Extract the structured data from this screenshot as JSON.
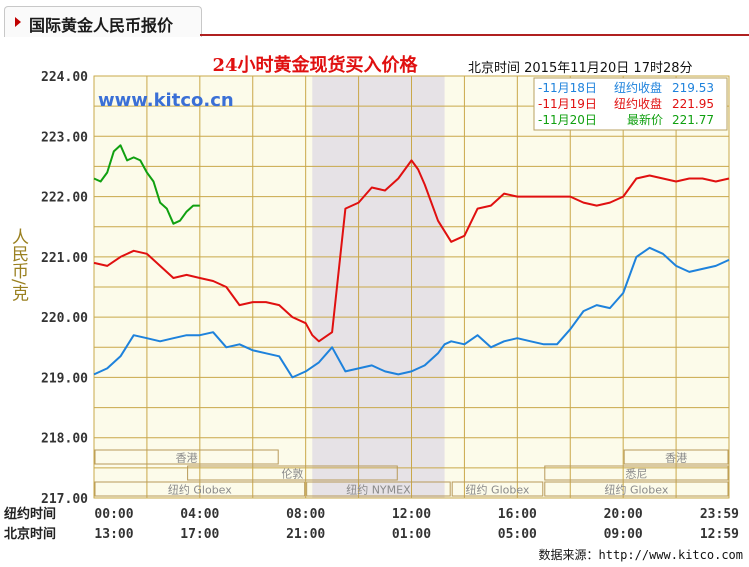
{
  "header": {
    "tab_title": "国际黄金人民币报价"
  },
  "source": {
    "label": "数据来源：",
    "url": "http://www.kitco.com"
  },
  "chart_data": {
    "type": "line",
    "title": "24小时黄金现货买入价格",
    "timestamp": "北京时间  2015年11月20日 17时28分",
    "watermark": "www.kitco.cn",
    "ylabel": "人民币/克",
    "ylim": [
      217,
      224
    ],
    "y_ticks": [
      "224.00",
      "223.00",
      "222.00",
      "221.00",
      "220.00",
      "219.00",
      "218.00",
      "217.00"
    ],
    "x_ticks_ny": [
      "00:00",
      "04:00",
      "08:00",
      "12:00",
      "16:00",
      "20:00",
      "23:59"
    ],
    "x_ticks_bj": [
      "13:00",
      "17:00",
      "21:00",
      "01:00",
      "05:00",
      "09:00",
      "12:59"
    ],
    "x_row_label_ny": "纽约时间",
    "x_row_label_bj": "北京时间",
    "grid": true,
    "legend_position": "top-right",
    "legend": [
      {
        "date": "-11月18日",
        "label": "纽约收盘",
        "value": "219.53",
        "color": "#1e82dc"
      },
      {
        "date": "-11月19日",
        "label": "纽约收盘",
        "value": "221.95",
        "color": "#e01010"
      },
      {
        "date": "-11月20日",
        "label": "最新价",
        "value": "221.77",
        "color": "#10a010"
      }
    ],
    "sessions": [
      {
        "label": "香港",
        "start": 0,
        "end": 7.0,
        "row": 0
      },
      {
        "label": "香港",
        "start": 20.0,
        "end": 24,
        "row": 0
      },
      {
        "label": "伦敦",
        "start": 3.5,
        "end": 11.5,
        "row": 1
      },
      {
        "label": "悉尼",
        "start": 17.0,
        "end": 24,
        "row": 1
      },
      {
        "label": "纽约 Globex",
        "start": 0,
        "end": 8.0,
        "row": 2
      },
      {
        "label": "纽约 NYMEX",
        "start": 8.0,
        "end": 13.5,
        "row": 2
      },
      {
        "label": "纽约 Globex",
        "start": 13.5,
        "end": 17.0,
        "row": 2
      },
      {
        "label": "纽约 Globex",
        "start": 17.0,
        "end": 24,
        "row": 2
      }
    ],
    "highlight_range": [
      8.25,
      13.25
    ],
    "series": [
      {
        "name": "11月18日",
        "color": "#1e82dc",
        "x": [
          0,
          0.5,
          1,
          1.5,
          2,
          2.5,
          3,
          3.5,
          4,
          4.5,
          5,
          5.5,
          6,
          6.5,
          7,
          7.5,
          8,
          8.5,
          9,
          9.5,
          10,
          10.5,
          11,
          11.5,
          12,
          12.5,
          13,
          13.25,
          13.5,
          14,
          14.5,
          15,
          15.5,
          16,
          16.5,
          17,
          17.5,
          18,
          18.5,
          19,
          19.5,
          20,
          20.5,
          21,
          21.5,
          22,
          22.5,
          23,
          23.5,
          24
        ],
        "y": [
          219.05,
          219.15,
          219.35,
          219.7,
          219.65,
          219.6,
          219.65,
          219.7,
          219.7,
          219.75,
          219.5,
          219.55,
          219.45,
          219.4,
          219.35,
          219.0,
          219.1,
          219.25,
          219.5,
          219.1,
          219.15,
          219.2,
          219.1,
          219.05,
          219.1,
          219.2,
          219.4,
          219.55,
          219.6,
          219.55,
          219.7,
          219.5,
          219.6,
          219.65,
          219.6,
          219.55,
          219.55,
          219.8,
          220.1,
          220.2,
          220.15,
          220.4,
          221.0,
          221.15,
          221.05,
          220.85,
          220.75,
          220.8,
          220.85,
          220.95
        ]
      },
      {
        "name": "11月19日",
        "color": "#e01010",
        "x": [
          0,
          0.5,
          1,
          1.5,
          2,
          2.5,
          3,
          3.5,
          4,
          4.5,
          5,
          5.5,
          6,
          6.5,
          7,
          7.5,
          8,
          8.25,
          8.5,
          9,
          9.5,
          10,
          10.5,
          11,
          11.5,
          12,
          12.25,
          12.5,
          13,
          13.5,
          14,
          14.5,
          15,
          15.5,
          16,
          16.5,
          17,
          17.5,
          18,
          18.5,
          19,
          19.5,
          20,
          20.5,
          21,
          21.5,
          22,
          22.5,
          23,
          23.5,
          24
        ],
        "y": [
          220.9,
          220.85,
          221.0,
          221.1,
          221.05,
          220.85,
          220.65,
          220.7,
          220.65,
          220.6,
          220.5,
          220.2,
          220.25,
          220.25,
          220.2,
          220.0,
          219.9,
          219.7,
          219.6,
          219.75,
          221.8,
          221.9,
          222.15,
          222.1,
          222.3,
          222.6,
          222.45,
          222.2,
          221.6,
          221.25,
          221.35,
          221.8,
          221.85,
          222.05,
          222.0,
          222.0,
          222.0,
          222.0,
          222.0,
          221.9,
          221.85,
          221.9,
          222.0,
          222.3,
          222.35,
          222.3,
          222.25,
          222.3,
          222.3,
          222.25,
          222.3
        ]
      },
      {
        "name": "11月20日",
        "color": "#10a010",
        "x": [
          0,
          0.25,
          0.5,
          0.75,
          1,
          1.25,
          1.5,
          1.75,
          2,
          2.25,
          2.5,
          2.75,
          3,
          3.25,
          3.5,
          3.75,
          4
        ],
        "y": [
          222.3,
          222.25,
          222.4,
          222.75,
          222.85,
          222.6,
          222.65,
          222.6,
          222.4,
          222.25,
          221.9,
          221.8,
          221.55,
          221.6,
          221.75,
          221.85,
          221.85
        ]
      }
    ]
  }
}
